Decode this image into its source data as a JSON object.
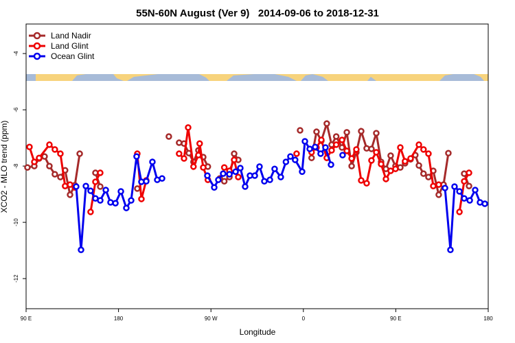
{
  "chart_data": {
    "type": "line",
    "title": "55N-60N August (Ver 9)   2014-09-06 to 2018-12-31",
    "xlabel": "Longitude",
    "ylabel": "XCO2 - MLO trend (ppm)",
    "xlim": [
      90,
      540
    ],
    "ylim": [
      -13.07,
      -2.95
    ],
    "xticks": [
      {
        "value": 90,
        "label": "90 E"
      },
      180,
      {
        "value": 270,
        "label": "90 W"
      },
      {
        "value": 360,
        "label": "0"
      },
      {
        "value": 450,
        "label": "90 E"
      },
      {
        "value": 540,
        "label": "180"
      }
    ],
    "yticks": [
      -4,
      -6,
      -8,
      -10,
      -12
    ],
    "legend": "top-left",
    "series": [
      {
        "name": "Land Nadir",
        "color": "#a52a2a",
        "x": [
          91.3,
          98,
          102.7,
          108,
          112.7,
          118,
          123.4,
          128,
          132.8,
          137.5,
          142.2,
          null,
          157.5,
          162.2,
          null,
          198.3,
          null,
          229,
          null,
          239,
          243.8,
          248.5,
          253,
          257.8,
          262.5,
          267,
          null,
          278.6,
          283,
          288,
          292.6,
          296.6,
          null,
          356.8,
          null,
          368,
          372.8,
          377.5,
          382.8,
          387.5,
          392,
          397.6,
          402.3,
          407,
          411.6,
          416.3,
          421.6,
          426.3,
          431,
          435.7,
          440.4,
          445,
          449.7,
          454.4,
          459,
          464.4,
          469,
          472.5,
          477,
          481.8,
          486.5,
          491.8,
          496.5,
          501.2,
          null,
          516.6,
          521.3
        ],
        "values": [
          -8.05,
          -8.0,
          -7.73,
          -7.66,
          -8.0,
          -8.29,
          -8.39,
          -8.15,
          -9.02,
          -8.68,
          -7.56,
          null,
          -8.24,
          -8.73,
          null,
          -8.8,
          null,
          -6.95,
          null,
          -7.17,
          -7.2,
          -7.54,
          -7.85,
          -7.44,
          -7.68,
          -8.02,
          null,
          -8.44,
          -8.54,
          -8.39,
          -7.56,
          -7.78,
          null,
          -6.73,
          null,
          -7.71,
          -6.78,
          -7.1,
          -6.49,
          -7.24,
          -6.95,
          -7.34,
          -6.8,
          -8.0,
          -7.51,
          -6.76,
          -7.37,
          -7.39,
          -6.83,
          -7.85,
          -8.1,
          -7.63,
          -8.0,
          -8.05,
          -7.9,
          -7.76,
          -7.61,
          -7.98,
          -8.27,
          -8.39,
          -8.17,
          -9.02,
          -8.66,
          -7.54,
          null,
          -8.27,
          -8.71
        ]
      },
      {
        "name": "Land Glint",
        "color": "#ee0000",
        "x": [
          93.3,
          98,
          102.7,
          112.7,
          118,
          123.4,
          128,
          132.8,
          137.5,
          null,
          152.8,
          157.5,
          162.2,
          null,
          198.3,
          202.3,
          207,
          null,
          239,
          243.8,
          247.8,
          253,
          257.8,
          259,
          262.5,
          267,
          null,
          283,
          288,
          292.6,
          296.6,
          null,
          353.4,
          null,
          368,
          372.8,
          377.5,
          382.8,
          387.5,
          392,
          397.6,
          402.3,
          407,
          411.6,
          416.3,
          421.6,
          426.3,
          431,
          435.7,
          440.4,
          445,
          449.7,
          454.4,
          459,
          464.4,
          472.5,
          477,
          481.8,
          486.5,
          491.8,
          null,
          512,
          516.6,
          521.3
        ],
        "values": [
          -7.32,
          -7.85,
          -7.71,
          -7.24,
          -7.41,
          -7.56,
          -8.71,
          -8.66,
          -8.76,
          null,
          -9.63,
          -8.56,
          -8.24,
          null,
          -7.56,
          -9.17,
          -8.51,
          null,
          -7.56,
          -7.73,
          -6.63,
          -8.02,
          -7.61,
          -7.2,
          -8.05,
          -8.49,
          null,
          -8.05,
          -8.17,
          -7.78,
          -8.39,
          null,
          -7.56,
          null,
          -7.51,
          -7.34,
          -7.07,
          -7.71,
          -7.44,
          -7.24,
          -7.07,
          -7.46,
          -7.73,
          -7.41,
          -8.51,
          -8.61,
          -7.8,
          -7.51,
          -7.93,
          -8.46,
          -8.17,
          -8.1,
          -7.34,
          -7.83,
          -7.73,
          -7.24,
          -7.41,
          -7.56,
          -8.71,
          -8.66,
          null,
          -9.63,
          -8.54,
          -8.24
        ]
      },
      {
        "name": "Ocean Glint",
        "color": "#0000ee",
        "x": [
          138.8,
          143.5,
          148.2,
          152.8,
          157.5,
          162.2,
          167.6,
          172.2,
          177,
          182.3,
          187.6,
          192.3,
          197.6,
          202.3,
          207,
          213,
          217.7,
          222.4,
          null,
          266.5,
          273.2,
          277.2,
          281.9,
          288,
          294,
          298.6,
          303.3,
          308,
          312.7,
          317.3,
          322,
          327.4,
          332,
          338,
          343,
          347.4,
          352,
          358.8,
          361.5,
          366.2,
          371.5,
          376.8,
          381.5,
          386.9,
          null,
          398.2,
          null,
          497.9,
          503.2,
          507.2,
          512,
          516.6,
          522,
          527.3,
          532,
          536.7
        ],
        "values": [
          -8.73,
          -10.98,
          -8.71,
          -8.88,
          -9.15,
          -9.22,
          -8.85,
          -9.29,
          -9.32,
          -8.9,
          -9.49,
          -9.22,
          -7.66,
          -8.56,
          -8.54,
          -7.85,
          -8.49,
          -8.44,
          null,
          -8.34,
          -8.76,
          -8.49,
          -8.27,
          -8.29,
          -8.2,
          -8.07,
          -8.73,
          -8.34,
          -8.34,
          -8.02,
          -8.54,
          -8.49,
          -8.1,
          -8.39,
          -7.85,
          -7.66,
          -7.78,
          -8.2,
          -7.12,
          -7.39,
          -7.32,
          -7.56,
          -7.34,
          -7.95,
          null,
          -7.61,
          null,
          -8.78,
          -10.98,
          -8.73,
          -8.9,
          -9.15,
          -9.22,
          -8.85,
          -9.29,
          -9.34
        ]
      }
    ]
  }
}
